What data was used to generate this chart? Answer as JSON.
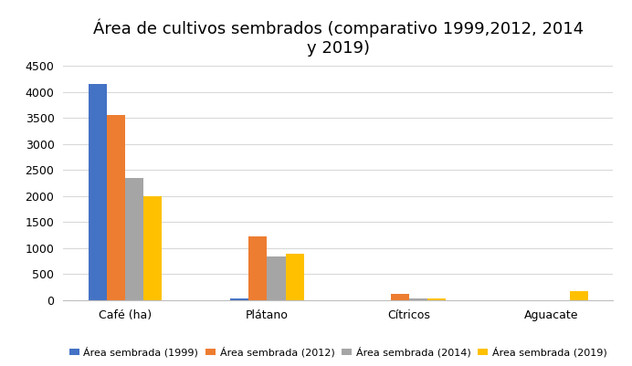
{
  "title": "Área de cultivos sembrados (comparativo 1999,2012, 2014\ny 2019)",
  "categories": [
    "Café (ha)",
    "Plátano",
    "Cítricos",
    "Aguacate"
  ],
  "series": {
    "Área sembrada (1999)": [
      4150,
      40,
      0,
      0
    ],
    "Área sembrada (2012)": [
      3550,
      1230,
      120,
      0
    ],
    "Área sembrada (2014)": [
      2340,
      840,
      30,
      0
    ],
    "Área sembrada (2019)": [
      2000,
      890,
      35,
      175
    ]
  },
  "colors": {
    "Área sembrada (1999)": "#4472C4",
    "Área sembrada (2012)": "#ED7D31",
    "Área sembrada (2014)": "#A5A5A5",
    "Área sembrada (2019)": "#FFC000"
  },
  "ylim": [
    0,
    4500
  ],
  "yticks": [
    0,
    500,
    1000,
    1500,
    2000,
    2500,
    3000,
    3500,
    4000,
    4500
  ],
  "background_color": "#ffffff",
  "grid_color": "#d9d9d9",
  "title_fontsize": 13,
  "tick_fontsize": 9,
  "legend_fontsize": 8,
  "bar_width": 0.13
}
